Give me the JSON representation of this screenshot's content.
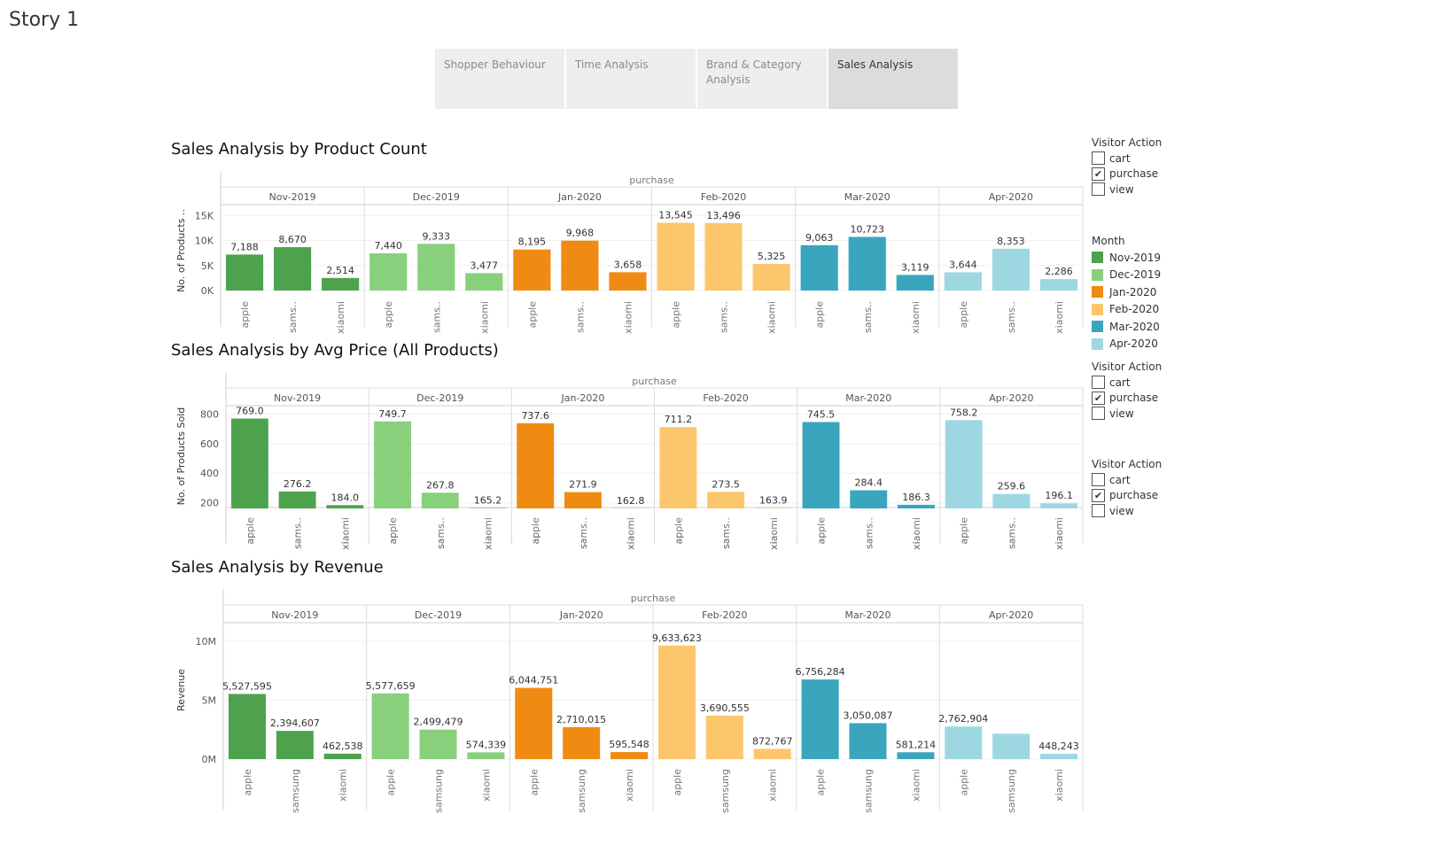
{
  "story_title": "Story 1",
  "tabs": [
    {
      "label": "Shopper Behaviour"
    },
    {
      "label": "Time Analysis"
    },
    {
      "label": "Brand & Category Analysis"
    },
    {
      "label": "Sales Analysis"
    }
  ],
  "colors": {
    "Nov-2019": "#4ea24e",
    "Dec-2019": "#88d07c",
    "Jan-2020": "#ef8b12",
    "Feb-2020": "#fcc66c",
    "Mar-2020": "#3aa6bd",
    "Apr-2020": "#9dd8e2"
  },
  "legends": {
    "visitor_action_1": {
      "title": "Visitor Action",
      "items": [
        {
          "label": "cart",
          "checked": false
        },
        {
          "label": "purchase",
          "checked": true
        },
        {
          "label": "view",
          "checked": false
        }
      ]
    },
    "month": {
      "title": "Month",
      "items": [
        {
          "label": "Nov-2019"
        },
        {
          "label": "Dec-2019"
        },
        {
          "label": "Jan-2020"
        },
        {
          "label": "Feb-2020"
        },
        {
          "label": "Mar-2020"
        },
        {
          "label": "Apr-2020"
        }
      ]
    },
    "visitor_action_2": {
      "title": "Visitor Action",
      "items": [
        {
          "label": "cart",
          "checked": false
        },
        {
          "label": "purchase",
          "checked": true
        },
        {
          "label": "view",
          "checked": false
        }
      ]
    },
    "visitor_action_3": {
      "title": "Visitor Action",
      "items": [
        {
          "label": "cart",
          "checked": false
        },
        {
          "label": "purchase",
          "checked": true
        },
        {
          "label": "view",
          "checked": false
        }
      ]
    }
  },
  "chart_data": [
    {
      "type": "bar",
      "title": "Sales Analysis by Product Count",
      "top_header": "purchase",
      "ylabel": "No. of Products ..",
      "ylim": [
        0,
        17000
      ],
      "yticks": [
        {
          "v": 0,
          "label": "0K"
        },
        {
          "v": 5000,
          "label": "5K"
        },
        {
          "v": 10000,
          "label": "10K"
        },
        {
          "v": 15000,
          "label": "15K"
        }
      ],
      "months": [
        "Nov-2019",
        "Dec-2019",
        "Jan-2020",
        "Feb-2020",
        "Mar-2020",
        "Apr-2020"
      ],
      "brands": [
        "apple",
        "sams..",
        "xiaomi"
      ],
      "values": [
        [
          7188,
          8670,
          2514
        ],
        [
          7440,
          9333,
          3477
        ],
        [
          8195,
          9968,
          3658
        ],
        [
          13545,
          13496,
          5325
        ],
        [
          9063,
          10723,
          3119
        ],
        [
          3644,
          8353,
          2286
        ]
      ],
      "labels": [
        [
          "7,188",
          "8,670",
          "2,514"
        ],
        [
          "7,440",
          "9,333",
          "3,477"
        ],
        [
          "8,195",
          "9,968",
          "3,658"
        ],
        [
          "13,545",
          "13,496",
          "5,325"
        ],
        [
          "9,063",
          "10,723",
          "3,119"
        ],
        [
          "3,644",
          "8,353",
          "2,286"
        ]
      ]
    },
    {
      "type": "bar",
      "title": "Sales Analysis by Avg Price (All Products)",
      "top_header": "purchase",
      "ylabel": "No. of Products Sold",
      "ylim": [
        0,
        850
      ],
      "yticks": [
        {
          "v": 200,
          "label": "200"
        },
        {
          "v": 400,
          "label": "400"
        },
        {
          "v": 600,
          "label": "600"
        },
        {
          "v": 800,
          "label": "800"
        }
      ],
      "months": [
        "Nov-2019",
        "Dec-2019",
        "Jan-2020",
        "Feb-2020",
        "Mar-2020",
        "Apr-2020"
      ],
      "brands": [
        "apple",
        "sams..",
        "xiaomi"
      ],
      "values": [
        [
          769.0,
          276.2,
          184.0
        ],
        [
          749.7,
          267.8,
          165.2
        ],
        [
          737.6,
          271.9,
          162.8
        ],
        [
          711.2,
          273.5,
          163.9
        ],
        [
          745.5,
          284.4,
          186.3
        ],
        [
          758.2,
          259.6,
          196.1
        ]
      ],
      "labels": [
        [
          "769.0",
          "276.2",
          "184.0"
        ],
        [
          "749.7",
          "267.8",
          "165.2"
        ],
        [
          "737.6",
          "271.9",
          "162.8"
        ],
        [
          "711.2",
          "273.5",
          "163.9"
        ],
        [
          "745.5",
          "284.4",
          "186.3"
        ],
        [
          "758.2",
          "259.6",
          "196.1"
        ]
      ]
    },
    {
      "type": "bar",
      "title": "Sales Analysis by Revenue",
      "top_header": "purchase",
      "ylabel": "Revenue",
      "ylim": [
        0,
        11500000
      ],
      "yticks": [
        {
          "v": 0,
          "label": "0M"
        },
        {
          "v": 5000000,
          "label": "5M"
        },
        {
          "v": 10000000,
          "label": "10M"
        }
      ],
      "months": [
        "Nov-2019",
        "Dec-2019",
        "Jan-2020",
        "Feb-2020",
        "Mar-2020",
        "Apr-2020"
      ],
      "brands": [
        "apple",
        "samsung",
        "xiaomi"
      ],
      "values": [
        [
          5527595,
          2394607,
          462538
        ],
        [
          5577659,
          2499479,
          574339
        ],
        [
          6044751,
          2710015,
          595548
        ],
        [
          9633623,
          3690555,
          872767
        ],
        [
          6756284,
          3050087,
          581214
        ],
        [
          2762904,
          2150000,
          448243
        ]
      ],
      "labels": [
        [
          "5,527,595",
          "2,394,607",
          "462,538"
        ],
        [
          "5,577,659",
          "2,499,479",
          "574,339"
        ],
        [
          "6,044,751",
          "2,710,015",
          "595,548"
        ],
        [
          "9,633,623",
          "3,690,555",
          "872,767"
        ],
        [
          "6,756,284",
          "3,050,087",
          "581,214"
        ],
        [
          "2,762,904",
          "",
          "448,243"
        ]
      ]
    }
  ]
}
